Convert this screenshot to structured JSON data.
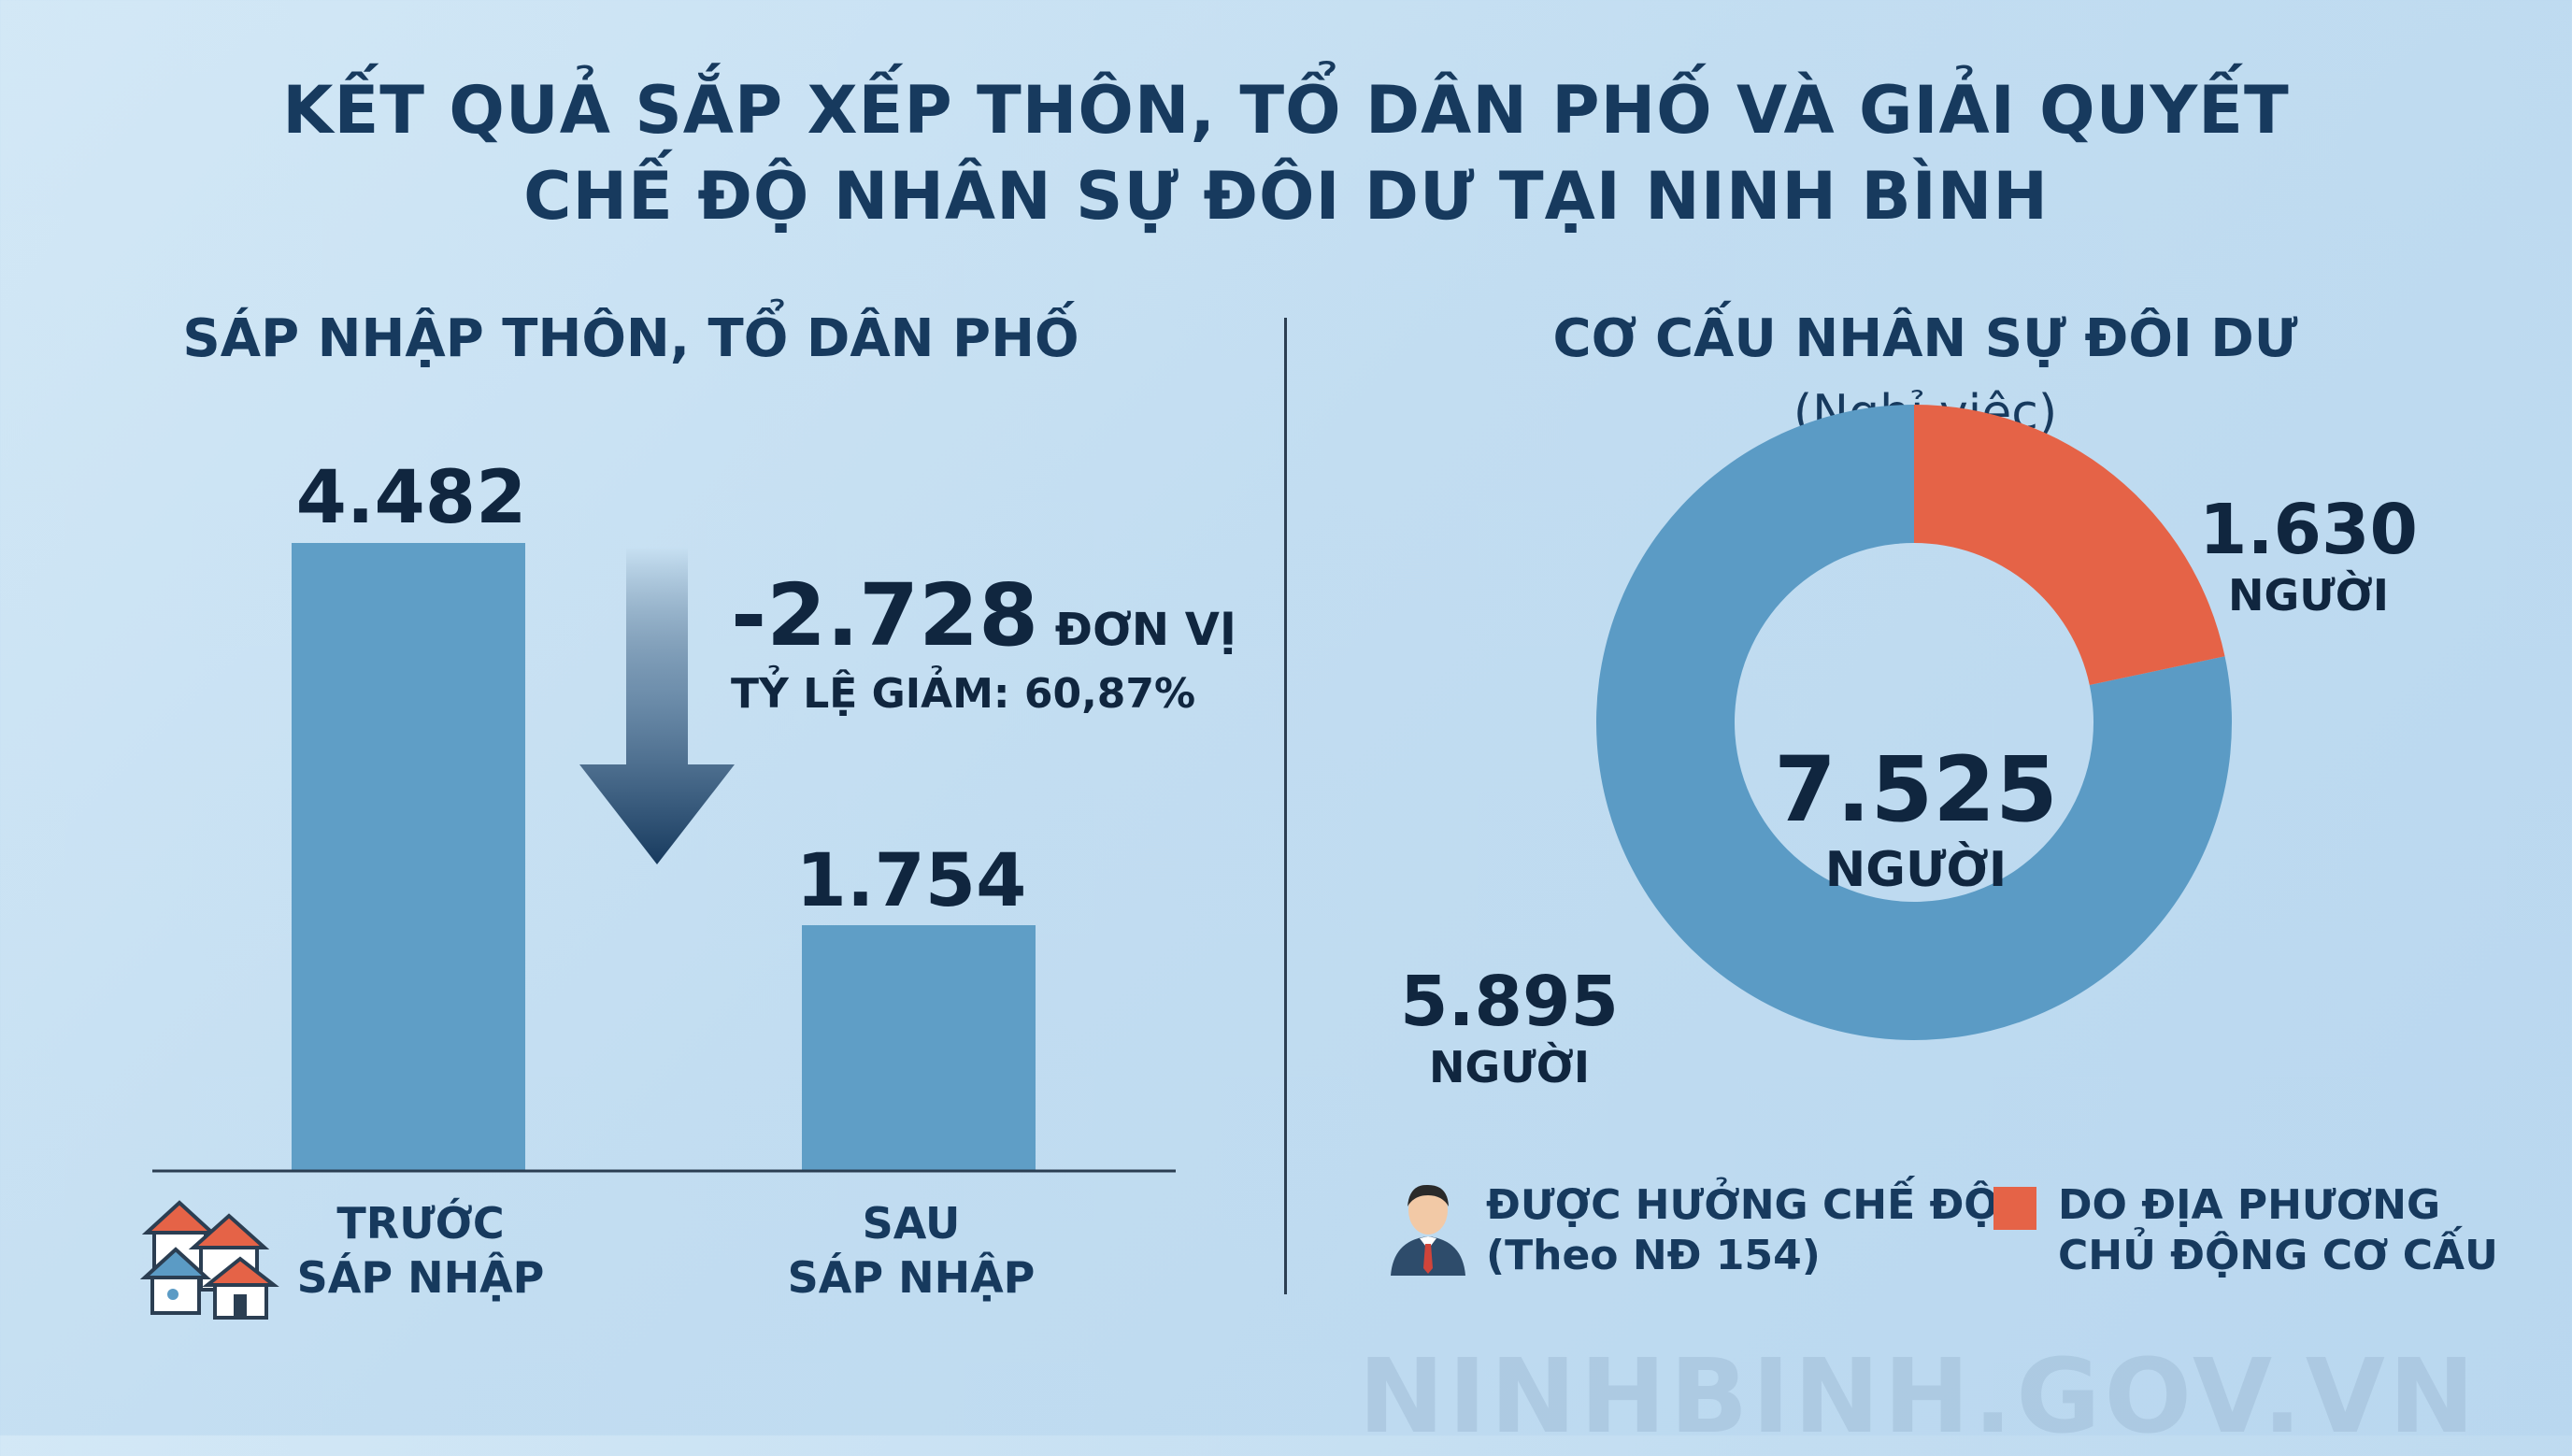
{
  "title": {
    "line1": "KẾT QUẢ SẮP XẾP THÔN, TỔ DÂN PHỐ VÀ GIẢI QUYẾT",
    "line2": "CHẾ ĐỘ NHÂN SỰ ĐÔI DƯ TẠI NINH BÌNH"
  },
  "left": {
    "heading": "SÁP NHẬP THÔN, TỔ DÂN PHỐ",
    "before_value": "4.482",
    "after_value": "1.754",
    "change_value": "-2.728",
    "change_unit": "ĐƠN VỊ",
    "rate_text": "TỶ LỆ GIẢM: 60,87%",
    "before_label_1": "TRƯỚC",
    "before_label_2": "SÁP NHẬP",
    "after_label_1": "SAU",
    "after_label_2": "SÁP NHẬP",
    "houses_icon": "houses-icon"
  },
  "right": {
    "heading": "CƠ CẤU NHÂN SỰ ĐÔI DƯ",
    "subheading": "(Nghỉ việc)",
    "total_value": "7.525",
    "total_unit": "NGƯỜI",
    "slice1_value": "5.895",
    "slice1_unit": "NGƯỜI",
    "slice2_value": "1.630",
    "slice2_unit": "NGƯỜI",
    "legend1_line1": "ĐƯỢC HƯỞNG CHẾ ĐỘ",
    "legend1_line2": "(Theo NĐ 154)",
    "legend2_line1": "DO ĐỊA PHƯƠNG",
    "legend2_line2": "CHỦ ĐỘNG CƠ CẤU",
    "person_icon": "person-icon"
  },
  "watermark": "NINHBINH.GOV.VN",
  "colors": {
    "bar": "#5f9ec6",
    "donut_main": "#5b9bc5",
    "donut_accent": "#e56347",
    "arrow_dark": "#173a5e",
    "title": "#173a5e"
  },
  "chart_data": [
    {
      "type": "bar",
      "title": "SÁP NHẬP THÔN, TỔ DÂN PHỐ",
      "categories": [
        "TRƯỚC SÁP NHẬP",
        "SAU SÁP NHẬP"
      ],
      "values": [
        4482,
        1754
      ],
      "annotations": [
        "-2.728 ĐƠN VỊ",
        "TỶ LỆ GIẢM: 60,87%"
      ],
      "ylim": [
        0,
        4482
      ]
    },
    {
      "type": "pie",
      "title": "CƠ CẤU NHÂN SỰ ĐÔI DƯ",
      "subtitle": "(Nghỉ việc)",
      "categories": [
        "ĐƯỢC HƯỞNG CHẾ ĐỘ (Theo NĐ 154)",
        "DO ĐỊA PHƯƠNG CHỦ ĐỘNG CƠ CẤU"
      ],
      "values": [
        5895,
        1630
      ],
      "total": 7525
    }
  ]
}
